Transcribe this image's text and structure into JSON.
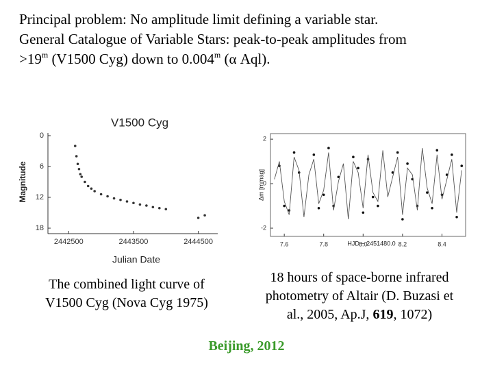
{
  "heading_lines": [
    [
      {
        "text": "Principal problem: No amplitude limit defining a variable star."
      }
    ],
    [
      {
        "text": "General Catalogue of Variable Stars: peak-to-peak amplitudes from"
      }
    ],
    [
      {
        "text": ">19"
      },
      {
        "text": "m",
        "sup": true
      },
      {
        "text": " (V1500 Cyg) down to 0.004"
      },
      {
        "text": "m",
        "sup": true
      },
      {
        "text": " (α Aql)."
      }
    ]
  ],
  "chart_data": [
    {
      "type": "scatter",
      "title": "V1500 Cyg",
      "xlabel": "Julian Date",
      "ylabel": "Magnitude",
      "y_inverted": true,
      "x": [
        2442600,
        2442620,
        2442640,
        2442660,
        2442680,
        2442700,
        2442750,
        2442800,
        2442850,
        2442900,
        2443000,
        2443100,
        2443200,
        2443300,
        2443400,
        2443500,
        2443600,
        2443700,
        2443800,
        2443900,
        2444000,
        2444500,
        2444600
      ],
      "series": [
        {
          "color": "#333333",
          "values": [
            2,
            4,
            5.5,
            6.5,
            7.5,
            8,
            9,
            9.8,
            10.3,
            10.8,
            11.4,
            11.8,
            12.2,
            12.5,
            12.8,
            13.1,
            13.4,
            13.6,
            13.9,
            14.1,
            14.3,
            16,
            15.5
          ]
        }
      ],
      "xlim": [
        2442180,
        2444800
      ],
      "xticks": [
        2442500,
        2443500,
        2444500
      ],
      "ylim": [
        0,
        18
      ],
      "yticks": [
        0,
        6,
        12,
        18
      ]
    },
    {
      "type": "line",
      "xlabel": "HJD − 2451480.0",
      "ylabel": "Δm [mmag]",
      "x": [
        7.55,
        7.575,
        7.6,
        7.625,
        7.65,
        7.675,
        7.7,
        7.725,
        7.75,
        7.775,
        7.8,
        7.825,
        7.85,
        7.875,
        7.9,
        7.925,
        7.95,
        7.975,
        8.0,
        8.025,
        8.05,
        8.075,
        8.1,
        8.125,
        8.15,
        8.175,
        8.2,
        8.225,
        8.25,
        8.275,
        8.3,
        8.325,
        8.35,
        8.375,
        8.4,
        8.425,
        8.45,
        8.475,
        8.5
      ],
      "series": [
        {
          "mode": "markers",
          "color": "#111111",
          "values": [
            null,
            0.8,
            -1.0,
            -1.2,
            1.4,
            0.5,
            null,
            null,
            1.3,
            -1.1,
            -0.5,
            1.6,
            -1.0,
            0.3,
            null,
            null,
            1.2,
            0.7,
            -1.3,
            1.1,
            -0.6,
            -1.0,
            null,
            null,
            0.5,
            1.4,
            -1.6,
            0.9,
            0.2,
            -1.0,
            null,
            -0.4,
            -1.1,
            1.5,
            -0.5,
            0.4,
            1.3,
            -1.5,
            0.8
          ]
        },
        {
          "mode": "line",
          "color": "#555555",
          "values": [
            0.2,
            1.0,
            -0.8,
            -1.4,
            1.2,
            0.6,
            -1.5,
            0.4,
            1.1,
            -0.9,
            -0.3,
            1.4,
            -1.2,
            0.1,
            0.9,
            -1.6,
            1.0,
            0.5,
            -1.1,
            1.3,
            -0.4,
            -0.8,
            1.5,
            -0.6,
            0.3,
            1.2,
            -1.4,
            0.7,
            0.4,
            -1.2,
            1.6,
            -0.2,
            -0.9,
            1.3,
            -0.7,
            0.2,
            1.1,
            -1.3,
            0.6
          ]
        }
      ],
      "xlim": [
        7.53,
        8.52
      ],
      "xticks": [
        7.6,
        7.8,
        {
          "value": 8,
          "label": "8.0"
        },
        8.2,
        8.4
      ],
      "ylim": [
        -2.37,
        2.25
      ],
      "yticks": [
        -2,
        0,
        2
      ]
    }
  ],
  "captions": [
    [
      [
        {
          "text": "The combined light curve of"
        }
      ],
      [
        {
          "text": "V1500 Cyg (Nova Cyg 1975)"
        }
      ]
    ],
    [
      [
        {
          "text": "18 hours of space-borne infrared"
        }
      ],
      [
        {
          "text": "photometry of Altair (D. Buzasi et"
        }
      ],
      [
        {
          "text": "al., 2005, Ap.J, "
        },
        {
          "text": "619",
          "bold": true
        },
        {
          "text": ", 1072)"
        }
      ]
    ]
  ],
  "footer": "Beijing, 2012"
}
